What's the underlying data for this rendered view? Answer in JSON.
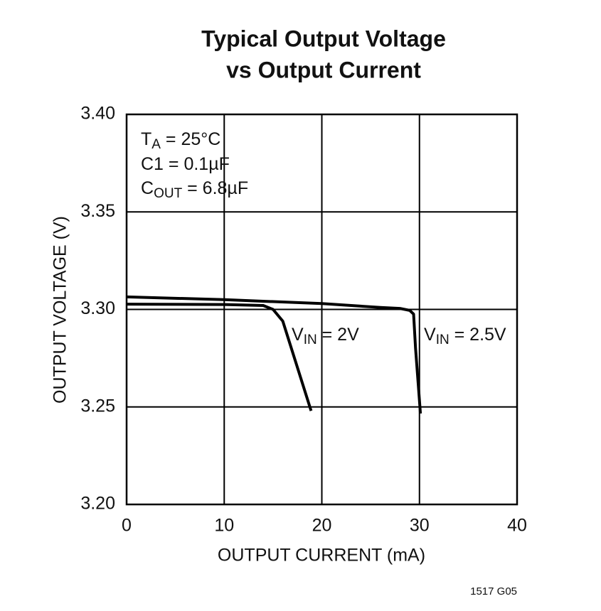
{
  "chart_data": {
    "type": "line",
    "title": [
      "Typical Output Voltage",
      "vs Output Current"
    ],
    "xlabel": "OUTPUT CURRENT (mA)",
    "ylabel": "OUTPUT VOLTAGE (V)",
    "xlim": [
      0,
      40
    ],
    "ylim": [
      3.2,
      3.4
    ],
    "xticks": [
      0,
      10,
      20,
      30,
      40
    ],
    "yticks": [
      {
        "value": 3.2,
        "label": "3.20"
      },
      {
        "value": 3.25,
        "label": "3.25"
      },
      {
        "value": 3.3,
        "label": "3.30"
      },
      {
        "value": 3.35,
        "label": "3.35"
      },
      {
        "value": 3.4,
        "label": "3.40"
      }
    ],
    "grid": true,
    "annotations": [
      [
        "T",
        "A",
        " = 25°C"
      ],
      [
        "C1 = 0.1µF",
        "",
        ""
      ],
      [
        "C",
        "OUT",
        " = 6.8µF"
      ]
    ],
    "footnote": "1517 G05",
    "series": [
      {
        "name": [
          "V",
          "IN",
          " = 2V"
        ],
        "color": "#000000",
        "x": [
          0,
          10,
          14,
          15,
          16,
          18.9
        ],
        "values": [
          3.3027,
          3.3025,
          3.302,
          3.3,
          3.294,
          3.248
        ]
      },
      {
        "name": [
          "V",
          "IN",
          " = 2.5V"
        ],
        "color": "#000000",
        "x": [
          0,
          10,
          20,
          26,
          28,
          29,
          29.4,
          29.6,
          30.1
        ],
        "values": [
          3.3064,
          3.305,
          3.303,
          3.301,
          3.3005,
          3.2995,
          3.2976,
          3.28,
          3.2466
        ]
      }
    ]
  }
}
